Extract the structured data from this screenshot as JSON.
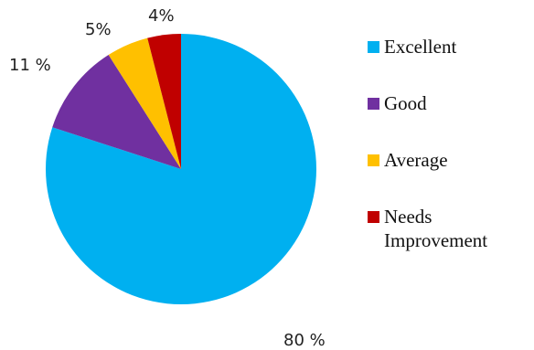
{
  "chart_data": {
    "type": "pie",
    "slices": [
      {
        "label": "Excellent",
        "value": 80,
        "data_label": "80 %",
        "color": "#00B0F0"
      },
      {
        "label": "Good",
        "value": 11,
        "data_label": "11 %",
        "color": "#7030A0"
      },
      {
        "label": "Average",
        "value": 5,
        "data_label": "5%",
        "color": "#FFC000"
      },
      {
        "label": "Needs\nImprovement",
        "value": 4,
        "data_label": "4%",
        "color": "#C00000"
      }
    ],
    "legend_position": "right"
  }
}
